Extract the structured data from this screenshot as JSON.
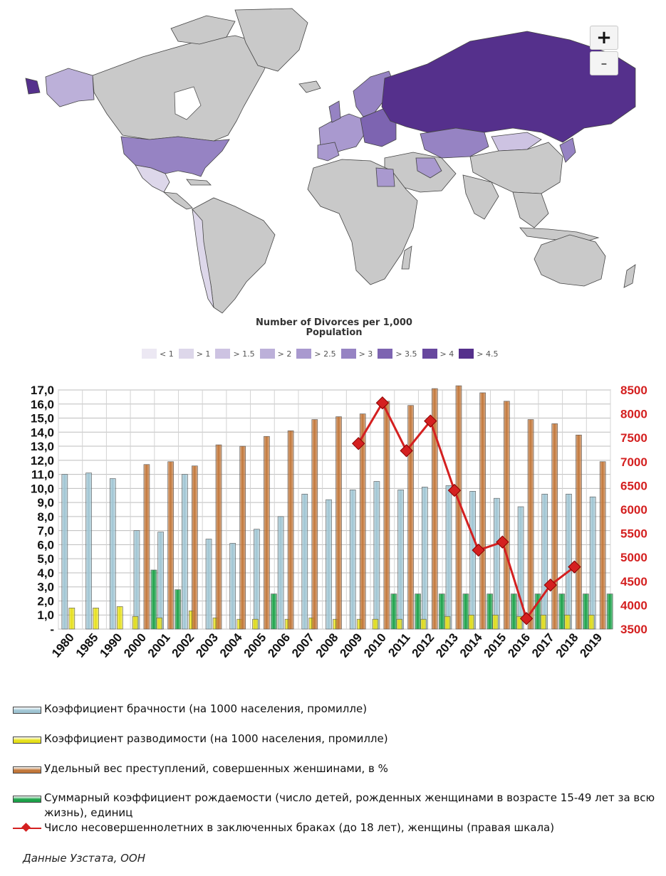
{
  "map": {
    "zoom_in_label": "+",
    "zoom_out_label": "-",
    "title_line1": "Number of Divorces per 1,000",
    "title_line2": "Population",
    "legend": [
      {
        "label": "< 1",
        "color": "#ece8f3"
      },
      {
        "label": "> 1",
        "color": "#ddd7ea"
      },
      {
        "label": "> 1.5",
        "color": "#cdc3e2"
      },
      {
        "label": "> 2",
        "color": "#bcb0d9"
      },
      {
        "label": "> 2.5",
        "color": "#a999cf"
      },
      {
        "label": "> 3",
        "color": "#9683c3"
      },
      {
        "label": "> 3.5",
        "color": "#7d64b1"
      },
      {
        "label": "> 4",
        "color": "#67479e"
      },
      {
        "label": "> 4.5",
        "color": "#55308c"
      }
    ],
    "no_data_color": "#c9c9c9"
  },
  "chart_data": {
    "type": "bar",
    "categories": [
      "1980",
      "1985",
      "1990",
      "2000",
      "2001",
      "2002",
      "2003",
      "2004",
      "2005",
      "2006",
      "2007",
      "2008",
      "2009",
      "2010",
      "2011",
      "2012",
      "2013",
      "2014",
      "2015",
      "2016",
      "2017",
      "2018",
      "2019"
    ],
    "left_axis": {
      "min": 0,
      "max": 17,
      "step": 1,
      "zero_label": "-",
      "ticks": [
        "-",
        "1,0",
        "2,0",
        "3,0",
        "4,0",
        "5,0",
        "6,0",
        "7,0",
        "8,0",
        "9,0",
        "10,0",
        "11,0",
        "12,0",
        "13,0",
        "14,0",
        "15,0",
        "16,0",
        "17,0"
      ]
    },
    "right_axis": {
      "min": 3500,
      "max": 8500,
      "step": 500,
      "ticks": [
        "3500",
        "4000",
        "4500",
        "5000",
        "5500",
        "6000",
        "6500",
        "7000",
        "7500",
        "8000",
        "8500"
      ],
      "color": "#d42020"
    },
    "series": [
      {
        "name": "Коэффициент брачности (на 1000 населения, промилле)",
        "color": "#9fc5d3",
        "axis": "left",
        "values": [
          11.0,
          11.1,
          10.7,
          7.0,
          6.9,
          11.0,
          6.4,
          6.1,
          7.1,
          8.0,
          9.6,
          9.2,
          9.9,
          10.5,
          9.9,
          10.1,
          10.2,
          9.8,
          9.3,
          8.7,
          9.6,
          9.6,
          9.4
        ]
      },
      {
        "name": "Коэффициент разводимости (на 1000 населения, промилле)",
        "color": "#e6e01a",
        "axis": "left",
        "values": [
          1.5,
          1.5,
          1.6,
          0.9,
          0.8,
          1.3,
          0.8,
          0.7,
          0.7,
          0.7,
          0.8,
          0.7,
          0.7,
          0.7,
          0.7,
          0.7,
          0.9,
          1.0,
          1.0,
          0.9,
          1.0,
          1.0,
          1.0
        ]
      },
      {
        "name": "Удельный вес преступлений, совершенных женшинами, в %",
        "color": "#c2773a",
        "axis": "left",
        "values": [
          null,
          null,
          null,
          11.7,
          11.9,
          11.6,
          13.1,
          13.0,
          13.7,
          14.1,
          14.9,
          15.1,
          15.3,
          16.2,
          15.9,
          17.1,
          17.3,
          16.8,
          16.2,
          14.9,
          14.6,
          13.8,
          11.9
        ]
      },
      {
        "name": "Суммарный коэффициент рождаемости (число детей, рожденных женщинами в возрасте 15-49 лет за всю жизнь), единиц",
        "color": "#1ca24a",
        "axis": "left",
        "values": [
          null,
          null,
          null,
          4.2,
          2.8,
          null,
          null,
          null,
          2.5,
          null,
          null,
          null,
          null,
          2.5,
          2.5,
          2.5,
          2.5,
          2.5,
          2.5,
          2.5,
          2.5,
          2.5,
          2.5
        ]
      },
      {
        "name": "Число несовершеннолетних в заключенных браках (до 18 лет), женщины (правая шкала)",
        "color": "#d42020",
        "axis": "right",
        "kind": "line",
        "values": [
          null,
          null,
          null,
          null,
          null,
          null,
          null,
          null,
          null,
          null,
          null,
          null,
          7380,
          8230,
          7230,
          7850,
          6400,
          5150,
          5320,
          3720,
          4420,
          4800,
          null
        ]
      }
    ]
  },
  "source": "Данные Узстата, ООН"
}
